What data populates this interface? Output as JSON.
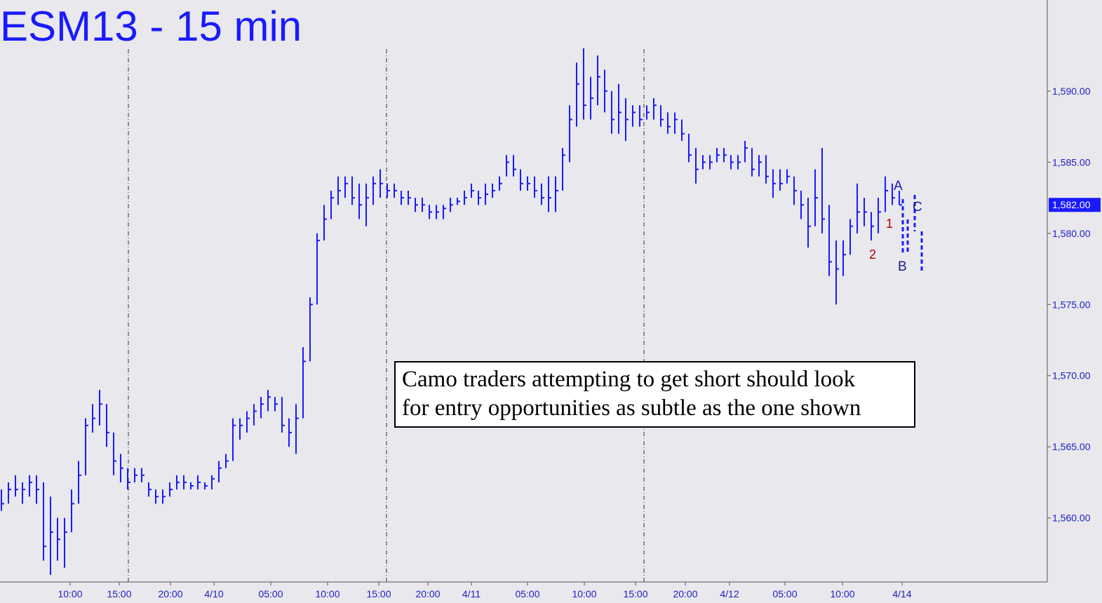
{
  "chart_data": {
    "type": "ohlc",
    "title": "ESM13 - 15 min",
    "color": "#1a1aff",
    "ylim": [
      1555.5,
      1596.4
    ],
    "yticks": [
      {
        "value": 1560,
        "label": "1,560.00"
      },
      {
        "value": 1565,
        "label": "1,565.00"
      },
      {
        "value": 1570,
        "label": "1,570.00"
      },
      {
        "value": 1575,
        "label": "1,575.00"
      },
      {
        "value": 1580,
        "label": "1,580.00"
      },
      {
        "value": 1585,
        "label": "1,585.00"
      },
      {
        "value": 1590,
        "label": "1,590.00"
      }
    ],
    "last_price": {
      "value": 1582,
      "label": "1,582.00"
    },
    "xlim": [
      -0.2,
      149.1
    ],
    "xticks": [
      {
        "value": 9.8,
        "label": "10:00"
      },
      {
        "value": 16.8,
        "label": "15:00"
      },
      {
        "value": 24.1,
        "label": "20:00"
      },
      {
        "value": 30.3,
        "label": "4/10"
      },
      {
        "value": 38.4,
        "label": "05:00"
      },
      {
        "value": 46.5,
        "label": "10:00"
      },
      {
        "value": 53.8,
        "label": "15:00"
      },
      {
        "value": 60.8,
        "label": "20:00"
      },
      {
        "value": 67,
        "label": "4/11"
      },
      {
        "value": 75,
        "label": "05:00"
      },
      {
        "value": 83.1,
        "label": "10:00"
      },
      {
        "value": 90.4,
        "label": "15:00"
      },
      {
        "value": 97.5,
        "label": "20:00"
      },
      {
        "value": 103.8,
        "label": "4/12"
      },
      {
        "value": 111.7,
        "label": "05:00"
      },
      {
        "value": 119.9,
        "label": "10:00"
      },
      {
        "value": 128.4,
        "label": "4/14"
      }
    ],
    "session_breaks": [
      18.1,
      54.9,
      91.6
    ],
    "high": [
      1562,
      1562.5,
      1563,
      1562.5,
      1563,
      1563,
      1562.5,
      1561.5,
      1560,
      1560,
      1562,
      1564,
      1567,
      1568,
      1569,
      1568,
      1566,
      1564.5,
      1563.5,
      1563.5,
      1563.5,
      1562.5,
      1562,
      1562,
      1562.5,
      1563,
      1563,
      1562.5,
      1563,
      1562.5,
      1563,
      1564,
      1564.5,
      1567,
      1567,
      1567.5,
      1568,
      1568.5,
      1569,
      1568.5,
      1568.5,
      1567,
      1568,
      1572,
      1575.5,
      1580,
      1582,
      1583,
      1584,
      1584,
      1584,
      1583.5,
      1583.5,
      1584,
      1584.5,
      1583.5,
      1583.5,
      1583,
      1583,
      1582.5,
      1582.5,
      1582,
      1582,
      1582,
      1582.5,
      1582.5,
      1583,
      1583.5,
      1583,
      1583.5,
      1583.5,
      1584,
      1585.5,
      1585.5,
      1584.5,
      1584,
      1584,
      1583.5,
      1584,
      1584,
      1586,
      1589,
      1592,
      1593,
      1591,
      1592.5,
      1591.5,
      1590,
      1590.5,
      1589.5,
      1589,
      1589,
      1589,
      1589.5,
      1589,
      1588.5,
      1588.5,
      1588,
      1587,
      1586,
      1585.5,
      1585.5,
      1586,
      1586,
      1585.5,
      1585.5,
      1586.5,
      1586,
      1585.5,
      1585.5,
      1584.5,
      1584.5,
      1584.5,
      1584,
      1583,
      1582.5,
      1584.5,
      1586,
      1582,
      1579.5,
      1579.5,
      1581,
      1583.5,
      1582.5,
      1581.5,
      1582.5,
      1584,
      1583.5,
      1583
    ],
    "low": [
      1560.5,
      1561,
      1561.5,
      1561,
      1561.5,
      1561,
      1557,
      1556,
      1557,
      1556.5,
      1559,
      1561,
      1563,
      1566,
      1566.5,
      1565,
      1563,
      1562.5,
      1562,
      1562.5,
      1562.5,
      1561.5,
      1561,
      1561,
      1561.5,
      1562,
      1562,
      1562,
      1562,
      1562,
      1562,
      1562.5,
      1563.5,
      1564,
      1565.5,
      1566,
      1566.5,
      1567,
      1567.5,
      1567.5,
      1566,
      1565,
      1564.5,
      1567,
      1571,
      1575,
      1579.5,
      1581,
      1582,
      1582.5,
      1582,
      1581,
      1580.5,
      1582,
      1582.5,
      1582.5,
      1582.5,
      1582,
      1582,
      1581.5,
      1581.5,
      1581,
      1581,
      1581,
      1581.5,
      1582,
      1582,
      1582.5,
      1582,
      1582,
      1582.5,
      1583,
      1584,
      1584,
      1583,
      1583,
      1582.5,
      1582,
      1581.5,
      1581.5,
      1583,
      1585,
      1587.5,
      1588,
      1588,
      1589,
      1588.5,
      1587,
      1587,
      1586.5,
      1587.5,
      1587.5,
      1588,
      1588,
      1587.5,
      1587,
      1587,
      1586.5,
      1585,
      1583.5,
      1584.5,
      1584.5,
      1585,
      1585,
      1584.5,
      1584.5,
      1585,
      1584,
      1584,
      1583.5,
      1582.5,
      1583,
      1583.5,
      1582,
      1581,
      1579,
      1580.5,
      1580,
      1577,
      1575,
      1577,
      1578.5,
      1580,
      1580.5,
      1579.5,
      1580,
      1581.5,
      1582,
      1582
    ],
    "close": [
      1561,
      1562,
      1562,
      1562,
      1562.5,
      1562,
      1558,
      1559,
      1558.5,
      1559,
      1561,
      1563,
      1566.5,
      1567,
      1568,
      1566,
      1564,
      1563.5,
      1562.5,
      1563,
      1563,
      1562,
      1561.5,
      1561.5,
      1562,
      1562.5,
      1562.5,
      1562.25,
      1562.5,
      1562.25,
      1562.75,
      1563.5,
      1564,
      1566.5,
      1566.5,
      1567,
      1567.5,
      1568,
      1568.5,
      1568,
      1566.5,
      1566,
      1567,
      1571,
      1575,
      1579.5,
      1581,
      1582.5,
      1583,
      1583.5,
      1582.5,
      1582,
      1582.5,
      1583.5,
      1583.5,
      1583,
      1583,
      1582.5,
      1582.5,
      1582,
      1582,
      1581.5,
      1581.5,
      1581.75,
      1582,
      1582.25,
      1582.5,
      1583,
      1582.5,
      1582.75,
      1583,
      1583.5,
      1585,
      1584.5,
      1583.5,
      1583.5,
      1583,
      1582.5,
      1582.5,
      1583,
      1585.5,
      1588,
      1590.5,
      1589,
      1589.5,
      1591,
      1590,
      1588,
      1588.5,
      1588,
      1588.5,
      1588,
      1588.5,
      1589,
      1588,
      1587.5,
      1588,
      1587,
      1585.5,
      1584.5,
      1585,
      1585,
      1585.5,
      1585.5,
      1585,
      1585,
      1586,
      1584.5,
      1585,
      1584,
      1583.5,
      1583.5,
      1584,
      1583,
      1582,
      1580.5,
      1582.5,
      1581,
      1578,
      1577.5,
      1578.5,
      1580.5,
      1581.5,
      1581.5,
      1580.5,
      1581.5,
      1583,
      1582.5,
      1582
    ],
    "annotations": {
      "a": "A",
      "b": "B",
      "c": "C",
      "one": "1",
      "two": "2"
    },
    "note_lines": [
      "Camo traders attempting to get short should look",
      "for entry opportunities as subtle as the one shown"
    ]
  }
}
